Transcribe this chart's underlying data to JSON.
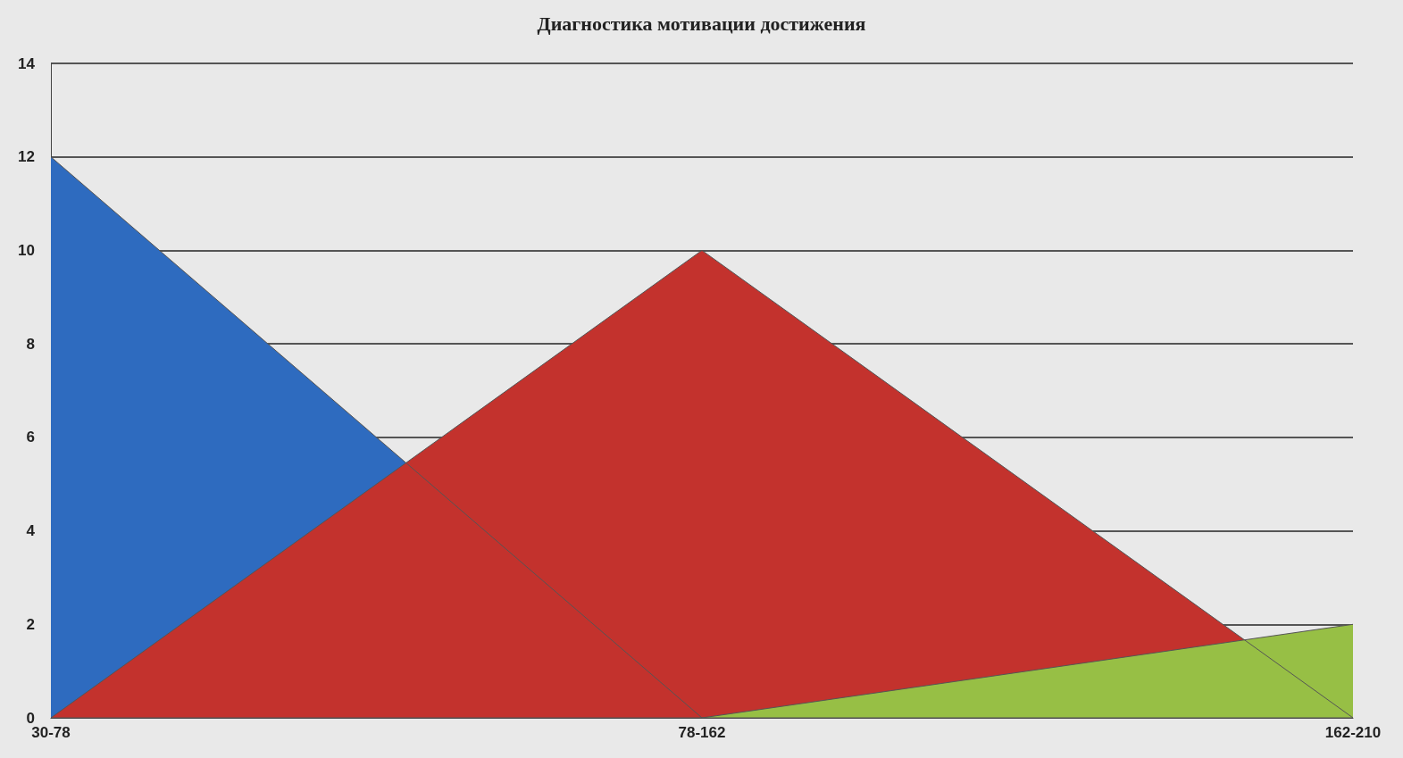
{
  "chart_data": {
    "type": "area",
    "title": "Диагностика мотивации достижения",
    "categories": [
      "30-78",
      "78-162",
      "162-210"
    ],
    "series": [
      {
        "color": "#2e6bbf",
        "values": [
          12,
          0,
          0
        ]
      },
      {
        "color": "#c3322d",
        "values": [
          0,
          10,
          0
        ]
      },
      {
        "color": "#97bf45",
        "values": [
          0,
          0,
          2
        ]
      }
    ],
    "ylim": [
      0,
      14
    ],
    "yticks": [
      0,
      2,
      4,
      6,
      8,
      10,
      12,
      14
    ],
    "grid": "y",
    "marker": "none"
  }
}
